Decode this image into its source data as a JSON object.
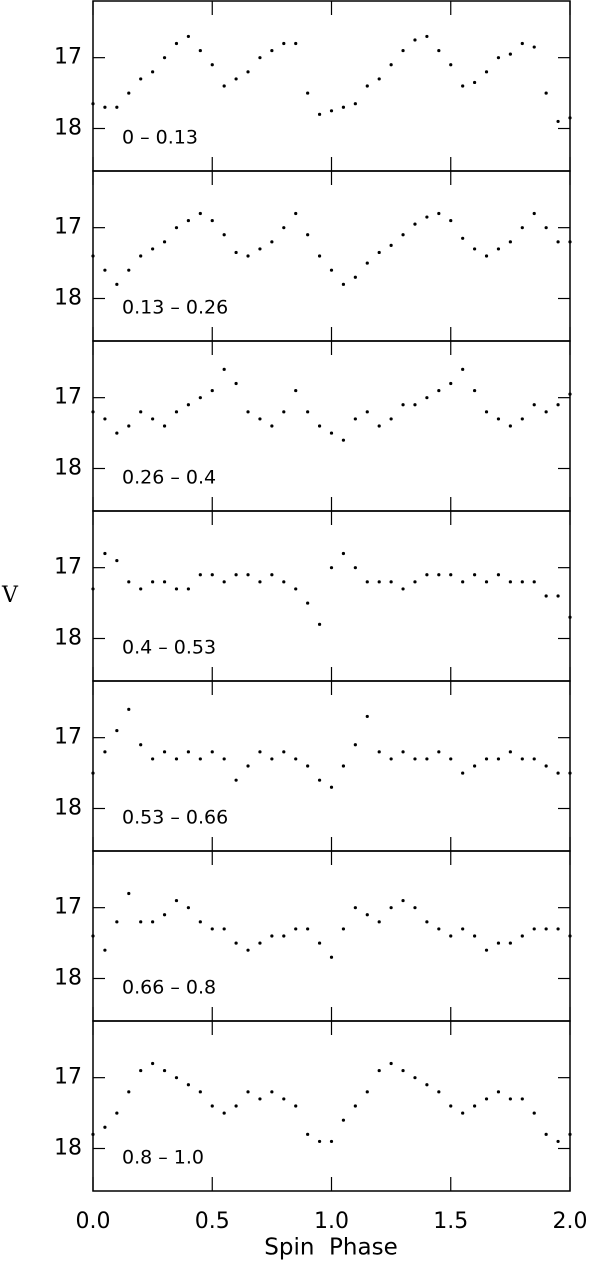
{
  "chart_data": [
    {
      "type": "scatter",
      "label": "0  –  0.13",
      "xlim": [
        0,
        2
      ],
      "ylim": [
        18.6,
        16.2
      ],
      "xticks": [
        0,
        0.5,
        1,
        1.5,
        2
      ],
      "yticks": [
        17,
        18
      ],
      "color": "#000000",
      "x": [
        0,
        0.05,
        0.1,
        0.15,
        0.2,
        0.25,
        0.3,
        0.35,
        0.4,
        0.45,
        0.5,
        0.55,
        0.6,
        0.65,
        0.7,
        0.75,
        0.8,
        0.85,
        0.9,
        0.95,
        1,
        1.05,
        1.1,
        1.15,
        1.2,
        1.25,
        1.3,
        1.35,
        1.4,
        1.45,
        1.5,
        1.55,
        1.6,
        1.65,
        1.7,
        1.75,
        1.8,
        1.85,
        1.9,
        1.95,
        2
      ],
      "y": [
        17.65,
        17.7,
        17.7,
        17.5,
        17.3,
        17.2,
        17.0,
        16.8,
        16.7,
        16.9,
        17.1,
        17.4,
        17.3,
        17.2,
        17.0,
        16.9,
        16.8,
        16.8,
        17.5,
        17.8,
        17.75,
        17.7,
        17.65,
        17.4,
        17.3,
        17.1,
        16.9,
        16.75,
        16.7,
        16.9,
        17.1,
        17.4,
        17.35,
        17.2,
        17.0,
        16.95,
        16.8,
        16.85,
        17.5,
        17.9,
        17.85
      ]
    },
    {
      "type": "scatter",
      "label": "0.13  –  0.26",
      "xlim": [
        0,
        2
      ],
      "ylim": [
        18.6,
        16.2
      ],
      "xticks": [
        0,
        0.5,
        1,
        1.5,
        2
      ],
      "yticks": [
        17,
        18
      ],
      "color": "#000000",
      "x": [
        0,
        0.05,
        0.1,
        0.15,
        0.2,
        0.25,
        0.3,
        0.35,
        0.4,
        0.45,
        0.5,
        0.55,
        0.6,
        0.65,
        0.7,
        0.75,
        0.8,
        0.85,
        0.9,
        0.95,
        1,
        1.05,
        1.1,
        1.15,
        1.2,
        1.25,
        1.3,
        1.35,
        1.4,
        1.45,
        1.5,
        1.55,
        1.6,
        1.65,
        1.7,
        1.75,
        1.8,
        1.85,
        1.9,
        1.95,
        2
      ],
      "y": [
        17.4,
        17.6,
        17.8,
        17.6,
        17.4,
        17.3,
        17.2,
        17.0,
        16.9,
        16.8,
        16.9,
        17.1,
        17.35,
        17.4,
        17.3,
        17.2,
        17.0,
        16.8,
        17.1,
        17.4,
        17.6,
        17.8,
        17.7,
        17.5,
        17.35,
        17.25,
        17.1,
        16.95,
        16.85,
        16.8,
        16.9,
        17.15,
        17.3,
        17.4,
        17.3,
        17.2,
        17.0,
        16.8,
        17.0,
        17.2,
        17.2
      ]
    },
    {
      "type": "scatter",
      "label": "0.26  –  0.4",
      "xlim": [
        0,
        2
      ],
      "ylim": [
        18.6,
        16.2
      ],
      "xticks": [
        0,
        0.5,
        1,
        1.5,
        2
      ],
      "yticks": [
        17,
        18
      ],
      "color": "#000000",
      "x": [
        0,
        0.05,
        0.1,
        0.15,
        0.2,
        0.25,
        0.3,
        0.35,
        0.4,
        0.45,
        0.5,
        0.55,
        0.6,
        0.65,
        0.7,
        0.75,
        0.8,
        0.85,
        0.9,
        0.95,
        1,
        1.05,
        1.1,
        1.15,
        1.2,
        1.25,
        1.3,
        1.35,
        1.4,
        1.45,
        1.5,
        1.55,
        1.6,
        1.65,
        1.7,
        1.75,
        1.8,
        1.85,
        1.9,
        1.95,
        2
      ],
      "y": [
        17.2,
        17.3,
        17.5,
        17.4,
        17.2,
        17.3,
        17.4,
        17.2,
        17.1,
        17.0,
        16.9,
        16.6,
        16.8,
        17.2,
        17.3,
        17.4,
        17.2,
        16.9,
        17.2,
        17.4,
        17.5,
        17.6,
        17.3,
        17.2,
        17.4,
        17.3,
        17.1,
        17.1,
        17.0,
        16.9,
        16.8,
        16.6,
        16.9,
        17.2,
        17.3,
        17.4,
        17.3,
        17.1,
        17.2,
        17.1,
        16.95
      ]
    },
    {
      "type": "scatter",
      "label": "0.4  –  0.53",
      "ylabel": "V",
      "xlim": [
        0,
        2
      ],
      "ylim": [
        18.6,
        16.2
      ],
      "xticks": [
        0,
        0.5,
        1,
        1.5,
        2
      ],
      "yticks": [
        17,
        18
      ],
      "color": "#000000",
      "x": [
        0,
        0.05,
        0.1,
        0.15,
        0.2,
        0.25,
        0.3,
        0.35,
        0.4,
        0.45,
        0.5,
        0.55,
        0.6,
        0.65,
        0.7,
        0.75,
        0.8,
        0.85,
        0.9,
        0.95,
        1,
        1.05,
        1.1,
        1.15,
        1.2,
        1.25,
        1.3,
        1.35,
        1.4,
        1.45,
        1.5,
        1.55,
        1.6,
        1.65,
        1.7,
        1.75,
        1.8,
        1.85,
        1.9,
        1.95,
        2
      ],
      "y": [
        17.3,
        16.8,
        16.9,
        17.2,
        17.3,
        17.2,
        17.2,
        17.3,
        17.3,
        17.1,
        17.1,
        17.2,
        17.1,
        17.1,
        17.2,
        17.1,
        17.2,
        17.3,
        17.5,
        17.8,
        17.0,
        16.8,
        17.0,
        17.2,
        17.2,
        17.2,
        17.3,
        17.2,
        17.1,
        17.1,
        17.1,
        17.2,
        17.1,
        17.2,
        17.1,
        17.2,
        17.2,
        17.2,
        17.4,
        17.4,
        17.7
      ]
    },
    {
      "type": "scatter",
      "label": "0.53  –  0.66",
      "xlim": [
        0,
        2
      ],
      "ylim": [
        18.6,
        16.2
      ],
      "xticks": [
        0,
        0.5,
        1,
        1.5,
        2
      ],
      "yticks": [
        17,
        18
      ],
      "color": "#000000",
      "x": [
        0,
        0.05,
        0.1,
        0.15,
        0.2,
        0.25,
        0.3,
        0.35,
        0.4,
        0.45,
        0.5,
        0.55,
        0.6,
        0.65,
        0.7,
        0.75,
        0.8,
        0.85,
        0.9,
        0.95,
        1,
        1.05,
        1.1,
        1.15,
        1.2,
        1.25,
        1.3,
        1.35,
        1.4,
        1.45,
        1.5,
        1.55,
        1.6,
        1.65,
        1.7,
        1.75,
        1.8,
        1.85,
        1.9,
        1.95,
        2
      ],
      "y": [
        17.5,
        17.2,
        16.9,
        16.6,
        17.1,
        17.3,
        17.2,
        17.3,
        17.2,
        17.3,
        17.2,
        17.3,
        17.6,
        17.4,
        17.2,
        17.3,
        17.2,
        17.3,
        17.4,
        17.6,
        17.7,
        17.4,
        17.1,
        16.7,
        17.2,
        17.3,
        17.2,
        17.3,
        17.3,
        17.2,
        17.3,
        17.5,
        17.4,
        17.3,
        17.3,
        17.2,
        17.3,
        17.3,
        17.4,
        17.5,
        17.5
      ]
    },
    {
      "type": "scatter",
      "label": "0.66  –  0.8",
      "xlim": [
        0,
        2
      ],
      "ylim": [
        18.6,
        16.2
      ],
      "xticks": [
        0,
        0.5,
        1,
        1.5,
        2
      ],
      "yticks": [
        17,
        18
      ],
      "color": "#000000",
      "x": [
        0,
        0.05,
        0.1,
        0.15,
        0.2,
        0.25,
        0.3,
        0.35,
        0.4,
        0.45,
        0.5,
        0.55,
        0.6,
        0.65,
        0.7,
        0.75,
        0.8,
        0.85,
        0.9,
        0.95,
        1,
        1.05,
        1.1,
        1.15,
        1.2,
        1.25,
        1.3,
        1.35,
        1.4,
        1.45,
        1.5,
        1.55,
        1.6,
        1.65,
        1.7,
        1.75,
        1.8,
        1.85,
        1.9,
        1.95,
        2
      ],
      "y": [
        17.4,
        17.6,
        17.2,
        16.8,
        17.2,
        17.2,
        17.1,
        16.9,
        17.0,
        17.2,
        17.3,
        17.3,
        17.5,
        17.6,
        17.5,
        17.4,
        17.4,
        17.3,
        17.3,
        17.5,
        17.7,
        17.3,
        17.0,
        17.1,
        17.2,
        17.0,
        16.9,
        17.0,
        17.2,
        17.3,
        17.4,
        17.3,
        17.4,
        17.6,
        17.5,
        17.5,
        17.4,
        17.3,
        17.3,
        17.3,
        17.4
      ]
    },
    {
      "type": "scatter",
      "label": "0.8  –  1.0",
      "xlabel": "Spin  Phase",
      "xlim": [
        0,
        2
      ],
      "ylim": [
        18.6,
        16.2
      ],
      "xticks": [
        {
          "value": 0,
          "label": "0.0"
        },
        {
          "value": 0.5,
          "label": "0.5"
        },
        {
          "value": 1,
          "label": "1.0"
        },
        {
          "value": 1.5,
          "label": "1.5"
        },
        {
          "value": 2,
          "label": "2.0"
        }
      ],
      "yticks": [
        17,
        18
      ],
      "color": "#000000",
      "x": [
        0,
        0.05,
        0.1,
        0.15,
        0.2,
        0.25,
        0.3,
        0.35,
        0.4,
        0.45,
        0.5,
        0.55,
        0.6,
        0.65,
        0.7,
        0.75,
        0.8,
        0.85,
        0.9,
        0.95,
        1,
        1.05,
        1.1,
        1.15,
        1.2,
        1.25,
        1.3,
        1.35,
        1.4,
        1.45,
        1.5,
        1.55,
        1.6,
        1.65,
        1.7,
        1.75,
        1.8,
        1.85,
        1.9,
        1.95,
        2
      ],
      "y": [
        17.8,
        17.7,
        17.5,
        17.2,
        16.9,
        16.8,
        16.9,
        17.0,
        17.1,
        17.2,
        17.4,
        17.5,
        17.4,
        17.2,
        17.3,
        17.2,
        17.3,
        17.4,
        17.8,
        17.9,
        17.9,
        17.6,
        17.4,
        17.2,
        16.9,
        16.8,
        16.9,
        17.0,
        17.1,
        17.2,
        17.4,
        17.5,
        17.4,
        17.3,
        17.2,
        17.3,
        17.3,
        17.5,
        17.8,
        17.9,
        17.8
      ]
    }
  ]
}
